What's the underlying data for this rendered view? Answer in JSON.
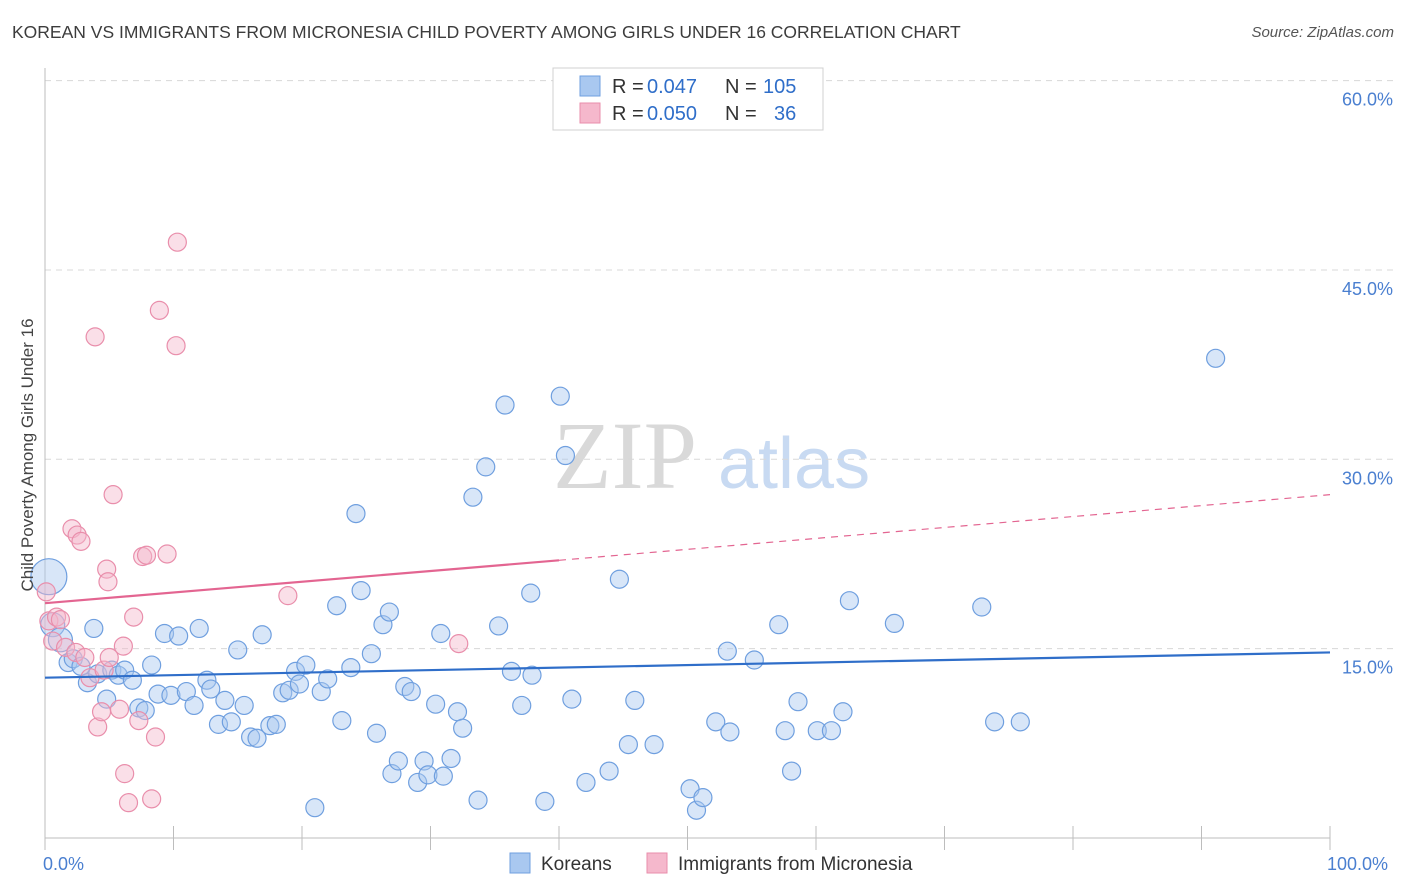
{
  "header": {
    "title": "KOREAN VS IMMIGRANTS FROM MICRONESIA CHILD POVERTY AMONG GIRLS UNDER 16 CORRELATION CHART",
    "source": "Source: ZipAtlas.com"
  },
  "watermark": {
    "zip": "ZIP",
    "atlas": "atlas"
  },
  "legend": {
    "koreans": {
      "r_label": "R =",
      "r_value": "0.047",
      "n_label": "N =",
      "n_value": "105"
    },
    "micronesia": {
      "r_label": "R =",
      "r_value": "0.050",
      "n_label": "N =",
      "n_value": "36"
    }
  },
  "colors": {
    "koreans_fill": "#a9c8f0",
    "koreans_stroke": "#6f9fdf",
    "koreans_line": "#2f6ec9",
    "micronesia_fill": "#f5b8cc",
    "micronesia_stroke": "#e98eab",
    "micronesia_line": "#e36591",
    "grid": "#d8d8d8",
    "tick_label": "#4a7fd0"
  },
  "chart_data": {
    "type": "scatter",
    "title": "KOREAN VS IMMIGRANTS FROM MICRONESIA CHILD POVERTY AMONG GIRLS UNDER 16 CORRELATION CHART",
    "xlabel": "",
    "ylabel": "Child Poverty Among Girls Under 16",
    "xlim": [
      0,
      100
    ],
    "ylim": [
      0,
      61
    ],
    "x_tick_labels": [
      "0.0%",
      "100.0%"
    ],
    "y_ticks": [
      15,
      30,
      45,
      60
    ],
    "y_tick_labels": [
      "15.0%",
      "30.0%",
      "45.0%",
      "60.0%"
    ],
    "legend_position": "top-center",
    "bottom_legend": [
      "Koreans",
      "Immigrants from Micronesia"
    ],
    "series": [
      {
        "name": "Koreans",
        "points": [
          [
            0.3,
            20.7
          ],
          [
            0.6,
            16.9
          ],
          [
            1.2,
            15.7
          ],
          [
            1.8,
            13.9
          ],
          [
            2.2,
            14.2
          ],
          [
            2.8,
            13.6
          ],
          [
            3.3,
            12.3
          ],
          [
            3.8,
            16.6
          ],
          [
            4.1,
            13.0
          ],
          [
            4.8,
            11.0
          ],
          [
            5.2,
            13.3
          ],
          [
            5.7,
            12.9
          ],
          [
            6.2,
            13.3
          ],
          [
            6.8,
            12.5
          ],
          [
            7.3,
            10.3
          ],
          [
            7.8,
            10.1
          ],
          [
            8.3,
            13.7
          ],
          [
            8.8,
            11.4
          ],
          [
            9.3,
            16.2
          ],
          [
            9.8,
            11.3
          ],
          [
            10.4,
            16.0
          ],
          [
            11.0,
            11.6
          ],
          [
            11.6,
            10.5
          ],
          [
            12.0,
            16.6
          ],
          [
            12.6,
            12.5
          ],
          [
            12.9,
            11.8
          ],
          [
            13.5,
            9.0
          ],
          [
            14.0,
            10.9
          ],
          [
            14.5,
            9.2
          ],
          [
            15.0,
            14.9
          ],
          [
            15.5,
            10.5
          ],
          [
            16.0,
            8.0
          ],
          [
            16.5,
            7.9
          ],
          [
            16.9,
            16.1
          ],
          [
            17.5,
            8.9
          ],
          [
            18.0,
            9.0
          ],
          [
            18.5,
            11.5
          ],
          [
            19.0,
            11.7
          ],
          [
            19.5,
            13.2
          ],
          [
            19.8,
            12.2
          ],
          [
            20.3,
            13.7
          ],
          [
            21.0,
            2.4
          ],
          [
            21.5,
            11.6
          ],
          [
            22.0,
            12.6
          ],
          [
            22.7,
            18.4
          ],
          [
            23.1,
            9.3
          ],
          [
            23.8,
            13.5
          ],
          [
            24.2,
            25.7
          ],
          [
            24.6,
            19.6
          ],
          [
            25.4,
            14.6
          ],
          [
            25.8,
            8.3
          ],
          [
            26.3,
            16.9
          ],
          [
            26.8,
            17.9
          ],
          [
            27.0,
            5.1
          ],
          [
            27.5,
            6.1
          ],
          [
            28.0,
            12.0
          ],
          [
            28.5,
            11.6
          ],
          [
            29.0,
            4.4
          ],
          [
            29.5,
            6.1
          ],
          [
            29.8,
            5.0
          ],
          [
            30.4,
            10.6
          ],
          [
            30.8,
            16.2
          ],
          [
            31.6,
            6.3
          ],
          [
            32.1,
            10.0
          ],
          [
            32.5,
            8.7
          ],
          [
            33.3,
            27.0
          ],
          [
            33.7,
            3.0
          ],
          [
            34.3,
            29.4
          ],
          [
            35.3,
            16.8
          ],
          [
            35.8,
            34.3
          ],
          [
            36.3,
            13.2
          ],
          [
            37.1,
            10.5
          ],
          [
            37.8,
            19.4
          ],
          [
            37.9,
            12.9
          ],
          [
            38.9,
            2.9
          ],
          [
            40.1,
            35.0
          ],
          [
            40.5,
            30.3
          ],
          [
            41.0,
            11.0
          ],
          [
            42.1,
            4.4
          ],
          [
            43.9,
            5.3
          ],
          [
            44.7,
            20.5
          ],
          [
            45.4,
            7.4
          ],
          [
            45.9,
            10.9
          ],
          [
            47.4,
            7.4
          ],
          [
            50.2,
            3.9
          ],
          [
            50.7,
            2.2
          ],
          [
            51.2,
            3.2
          ],
          [
            52.2,
            9.2
          ],
          [
            53.1,
            14.8
          ],
          [
            53.3,
            8.4
          ],
          [
            55.2,
            14.1
          ],
          [
            57.1,
            16.9
          ],
          [
            57.6,
            8.5
          ],
          [
            58.1,
            5.3
          ],
          [
            58.6,
            10.8
          ],
          [
            60.1,
            8.5
          ],
          [
            61.2,
            8.5
          ],
          [
            62.1,
            10.0
          ],
          [
            62.6,
            18.8
          ],
          [
            66.1,
            17.0
          ],
          [
            72.9,
            18.3
          ],
          [
            73.9,
            9.2
          ],
          [
            75.9,
            9.2
          ],
          [
            91.1,
            38.0
          ],
          [
            31.0,
            4.9
          ]
        ]
      },
      {
        "name": "Immigrants from Micronesia",
        "points": [
          [
            0.1,
            19.5
          ],
          [
            0.3,
            17.2
          ],
          [
            0.6,
            15.6
          ],
          [
            0.9,
            17.5
          ],
          [
            1.2,
            17.3
          ],
          [
            1.6,
            15.1
          ],
          [
            2.1,
            24.5
          ],
          [
            2.4,
            14.7
          ],
          [
            2.5,
            24.0
          ],
          [
            2.8,
            23.5
          ],
          [
            3.1,
            14.3
          ],
          [
            3.5,
            12.7
          ],
          [
            3.9,
            39.7
          ],
          [
            4.1,
            8.8
          ],
          [
            4.4,
            10.0
          ],
          [
            4.6,
            13.3
          ],
          [
            5.0,
            14.3
          ],
          [
            5.3,
            27.2
          ],
          [
            5.8,
            10.2
          ],
          [
            6.1,
            15.2
          ],
          [
            6.2,
            5.1
          ],
          [
            6.5,
            2.8
          ],
          [
            6.9,
            17.5
          ],
          [
            7.3,
            9.3
          ],
          [
            7.6,
            22.3
          ],
          [
            8.3,
            3.1
          ],
          [
            8.6,
            8.0
          ],
          [
            8.9,
            41.8
          ],
          [
            9.5,
            22.5
          ],
          [
            10.2,
            39.0
          ],
          [
            10.3,
            47.2
          ],
          [
            4.8,
            21.3
          ],
          [
            4.9,
            20.3
          ],
          [
            7.9,
            22.4
          ],
          [
            18.9,
            19.2
          ],
          [
            32.2,
            15.4
          ]
        ]
      }
    ],
    "trend_lines": [
      {
        "series": "Koreans",
        "x": [
          0,
          100
        ],
        "y": [
          12.7,
          14.7
        ],
        "style": "solid"
      },
      {
        "series": "Immigrants from Micronesia",
        "x": [
          0,
          40
        ],
        "y": [
          18.6,
          22.0
        ],
        "style": "solid"
      },
      {
        "series": "Immigrants from Micronesia",
        "x": [
          40,
          100
        ],
        "y": [
          22.0,
          27.2
        ],
        "style": "dashed"
      }
    ]
  }
}
